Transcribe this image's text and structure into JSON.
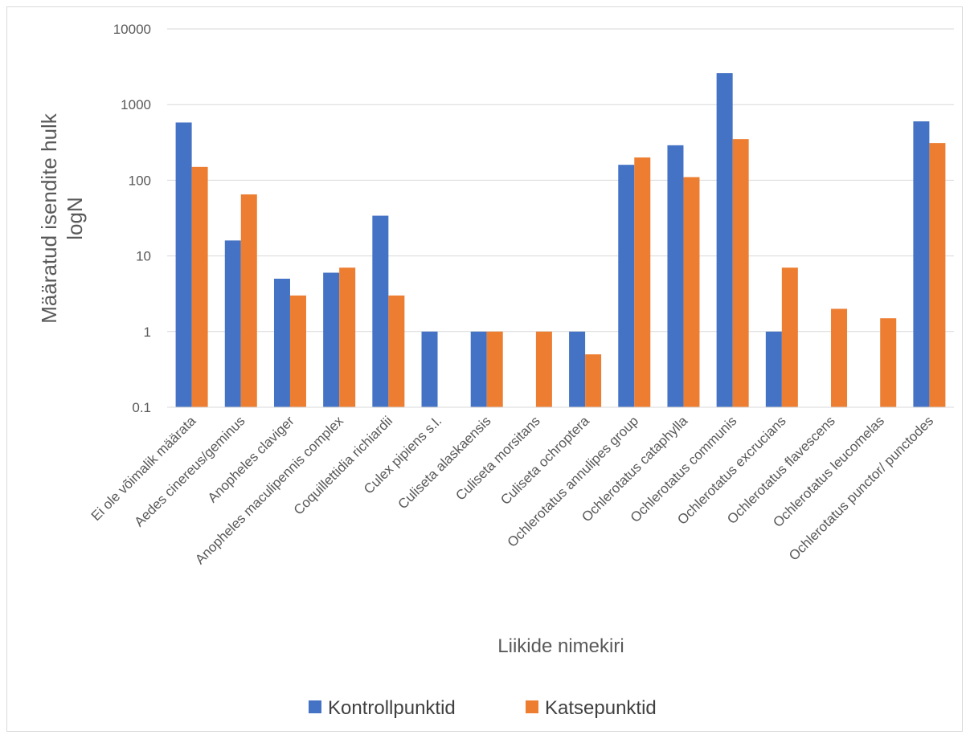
{
  "chart_data": {
    "type": "bar",
    "title": "",
    "ylabel_lines": [
      "Määratud isendite hulk",
      "logN"
    ],
    "xlabel": "Liikide nimekiri",
    "yscale": "log",
    "ylim": [
      0.1,
      10000
    ],
    "y_ticks": [
      0.1,
      1,
      10,
      100,
      1000,
      10000
    ],
    "y_tick_labels": [
      "0.1",
      "1",
      "10",
      "100",
      "1000",
      "10000"
    ],
    "grid": true,
    "legend_position": "bottom",
    "categories": [
      "Ei ole võimalik määrata",
      "Aedes cinereus/geminus",
      "Anopheles claviger",
      "Anopheles maculipennis complex",
      "Coquillettidia richiardii",
      "Culex pipiens s.l.",
      "Culiseta alaskaensis",
      "Culiseta morsitans",
      "Culiseta ochroptera",
      "Ochlerotatus annulipes group",
      "Ochlerotatus cataphylla",
      "Ochlerotatus communis",
      "Ochlerotatus excrucians",
      "Ochlerotatus flavescens",
      "Ochlerotatus leucomelas",
      "Ochlerotatus punctor/ punctodes"
    ],
    "series": [
      {
        "name": "Kontrollpunktid",
        "color": "#4472c4",
        "values": [
          580,
          16,
          5,
          6,
          34,
          1,
          1,
          null,
          1,
          160,
          290,
          2600,
          1,
          null,
          null,
          600
        ]
      },
      {
        "name": "Katsepunktid",
        "color": "#ed7d31",
        "values": [
          150,
          65,
          3,
          7,
          3,
          null,
          1,
          1,
          0.5,
          200,
          110,
          350,
          7,
          2,
          1.5,
          310
        ]
      }
    ]
  }
}
